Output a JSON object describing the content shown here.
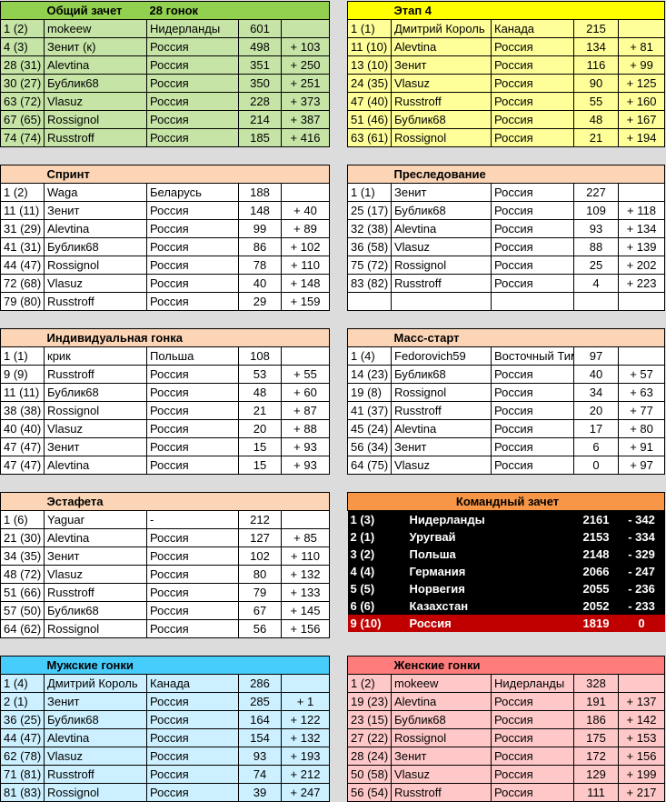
{
  "tables": [
    {
      "id": "overall",
      "title": "Общий зачет",
      "subtitle": "28 гонок",
      "side": "left",
      "header_color": "#92d050",
      "row_color": "#c6e4a6",
      "rows": [
        [
          "1 (2)",
          "mokeew",
          "Нидерланды",
          "601",
          ""
        ],
        [
          "4 (3)",
          "Зенит (к)",
          "Россия",
          "498",
          "+ 103"
        ],
        [
          "28 (31)",
          "Alevtina",
          "Россия",
          "351",
          "+ 250"
        ],
        [
          "30 (27)",
          "Бублик68",
          "Россия",
          "350",
          "+ 251"
        ],
        [
          "63 (72)",
          "Vlasuz",
          "Россия",
          "228",
          "+ 373"
        ],
        [
          "67 (65)",
          "Rossignol",
          "Россия",
          "214",
          "+ 387"
        ],
        [
          "74 (74)",
          "Russtroff",
          "Россия",
          "185",
          "+ 416"
        ]
      ]
    },
    {
      "id": "stage4",
      "title": "Этап 4",
      "subtitle": "",
      "side": "right",
      "header_color": "#ffff00",
      "row_color": "#ffff99",
      "rows": [
        [
          "1 (1)",
          "Дмитрий Король",
          "Канада",
          "215",
          ""
        ],
        [
          "11 (10)",
          "Alevtina",
          "Россия",
          "134",
          "+ 81"
        ],
        [
          "13 (10)",
          "Зенит",
          "Россия",
          "116",
          "+ 99"
        ],
        [
          "24 (35)",
          "Vlasuz",
          "Россия",
          "90",
          "+ 125"
        ],
        [
          "47 (40)",
          "Russtroff",
          "Россия",
          "55",
          "+ 160"
        ],
        [
          "51 (46)",
          "Бублик68",
          "Россия",
          "48",
          "+ 167"
        ],
        [
          "63 (61)",
          "Rossignol",
          "Россия",
          "21",
          "+ 194"
        ]
      ]
    },
    {
      "id": "sprint",
      "title": "Спринт",
      "subtitle": "",
      "side": "left",
      "header_color": "#fbd5b5",
      "row_color": "#ffffff",
      "rows": [
        [
          "1 (2)",
          "Waga",
          "Беларусь",
          "188",
          ""
        ],
        [
          "11 (11)",
          "Зенит",
          "Россия",
          "148",
          "+ 40"
        ],
        [
          "31 (29)",
          "Alevtina",
          "Россия",
          "99",
          "+ 89"
        ],
        [
          "41 (31)",
          "Бублик68",
          "Россия",
          "86",
          "+ 102"
        ],
        [
          "44 (47)",
          "Rossignol",
          "Россия",
          "78",
          "+ 110"
        ],
        [
          "72 (68)",
          "Vlasuz",
          "Россия",
          "40",
          "+ 148"
        ],
        [
          "79 (80)",
          "Russtroff",
          "Россия",
          "29",
          "+ 159"
        ]
      ]
    },
    {
      "id": "pursuit",
      "title": "Преследование",
      "subtitle": "",
      "side": "right",
      "header_color": "#fbd5b5",
      "row_color": "#ffffff",
      "rows": [
        [
          "1 (1)",
          "Зенит",
          "Россия",
          "227",
          ""
        ],
        [
          "25 (17)",
          "Бублик68",
          "Россия",
          "109",
          "+ 118"
        ],
        [
          "32 (38)",
          "Alevtina",
          "Россия",
          "93",
          "+ 134"
        ],
        [
          "36 (58)",
          "Vlasuz",
          "Россия",
          "88",
          "+ 139"
        ],
        [
          "75 (72)",
          "Rossignol",
          "Россия",
          "25",
          "+ 202"
        ],
        [
          "83 (82)",
          "Russtroff",
          "Россия",
          "4",
          "+ 223"
        ],
        [
          "",
          "",
          "",
          "",
          ""
        ]
      ]
    },
    {
      "id": "individual",
      "title": "Индивидуальная гонка",
      "subtitle": "",
      "side": "left",
      "header_color": "#fbd5b5",
      "row_color": "#ffffff",
      "rows": [
        [
          "1 (1)",
          "крик",
          "Польша",
          "108",
          ""
        ],
        [
          "9 (9)",
          "Russtroff",
          "Россия",
          "53",
          "+ 55"
        ],
        [
          "11 (11)",
          "Бублик68",
          "Россия",
          "48",
          "+ 60"
        ],
        [
          "38 (38)",
          "Rossignol",
          "Россия",
          "21",
          "+ 87"
        ],
        [
          "40 (40)",
          "Vlasuz",
          "Россия",
          "20",
          "+ 88"
        ],
        [
          "47 (47)",
          "Зенит",
          "Россия",
          "15",
          "+ 93"
        ],
        [
          "47 (47)",
          "Alevtina",
          "Россия",
          "15",
          "+ 93"
        ]
      ]
    },
    {
      "id": "massstart",
      "title": "Масс-старт",
      "subtitle": "",
      "side": "right",
      "header_color": "#fbd5b5",
      "row_color": "#ffffff",
      "rows": [
        [
          "1 (4)",
          "Fedorovich59",
          "Восточный Тимор",
          "97",
          ""
        ],
        [
          "14 (23)",
          "Бублик68",
          "Россия",
          "40",
          "+ 57"
        ],
        [
          "19 (8)",
          "Rossignol",
          "Россия",
          "34",
          "+ 63"
        ],
        [
          "41 (37)",
          "Russtroff",
          "Россия",
          "20",
          "+ 77"
        ],
        [
          "45 (24)",
          "Alevtina",
          "Россия",
          "17",
          "+ 80"
        ],
        [
          "56 (34)",
          "Зенит",
          "Россия",
          "6",
          "+ 91"
        ],
        [
          "64 (75)",
          "Vlasuz",
          "Россия",
          "0",
          "+ 97"
        ]
      ]
    },
    {
      "id": "relay",
      "title": "Эстафета",
      "subtitle": "",
      "side": "left",
      "header_color": "#fbd5b5",
      "row_color": "#ffffff",
      "rows": [
        [
          "1 (6)",
          "Yaguar",
          "-",
          "212",
          ""
        ],
        [
          "21 (30)",
          "Alevtina",
          "Россия",
          "127",
          "+ 85"
        ],
        [
          "34 (35)",
          "Зенит",
          "Россия",
          "102",
          "+ 110"
        ],
        [
          "48 (72)",
          "Vlasuz",
          "Россия",
          "80",
          "+ 132"
        ],
        [
          "51 (66)",
          "Russtroff",
          "Россия",
          "79",
          "+ 133"
        ],
        [
          "57 (50)",
          "Бублик68",
          "Россия",
          "67",
          "+ 145"
        ],
        [
          "64 (62)",
          "Rossignol",
          "Россия",
          "56",
          "+ 156"
        ]
      ]
    },
    {
      "id": "team",
      "title": "Командный зачет",
      "subtitle": "",
      "side": "right",
      "header_color": "#f79646",
      "row_color": "#000000",
      "highlight_color": "#c00000",
      "rows": [
        [
          "1 (3)",
          "Нидерланды",
          "",
          "2161",
          "- 342"
        ],
        [
          "2 (1)",
          "Уругвай",
          "",
          "2153",
          "- 334"
        ],
        [
          "3 (2)",
          "Польша",
          "",
          "2148",
          "- 329"
        ],
        [
          "4 (4)",
          "Германия",
          "",
          "2066",
          "- 247"
        ],
        [
          "5 (5)",
          "Норвегия",
          "",
          "2055",
          "- 236"
        ],
        [
          "6 (6)",
          "Казахстан",
          "",
          "2052",
          "- 233"
        ],
        [
          "9 (10)",
          "Россия",
          "",
          "1819",
          "0"
        ]
      ]
    },
    {
      "id": "men",
      "title": "Мужские гонки",
      "subtitle": "",
      "side": "left",
      "header_color": "#47cdfb",
      "row_color": "#ccf0ff",
      "rows": [
        [
          "1 (4)",
          "Дмитрий Король",
          "Канада",
          "286",
          ""
        ],
        [
          "2 (1)",
          "Зенит",
          "Россия",
          "285",
          "+ 1"
        ],
        [
          "36 (25)",
          "Бублик68",
          "Россия",
          "164",
          "+ 122"
        ],
        [
          "44 (47)",
          "Alevtina",
          "Россия",
          "154",
          "+ 132"
        ],
        [
          "62 (78)",
          "Vlasuz",
          "Россия",
          "93",
          "+ 193"
        ],
        [
          "71 (81)",
          "Russtroff",
          "Россия",
          "74",
          "+ 212"
        ],
        [
          "81 (83)",
          "Rossignol",
          "Россия",
          "39",
          "+ 247"
        ]
      ]
    },
    {
      "id": "women",
      "title": "Женские гонки",
      "subtitle": "",
      "side": "right",
      "header_color": "#ff7c7c",
      "row_color": "#ffc8c8",
      "rows": [
        [
          "1 (2)",
          "mokeew",
          "Нидерланды",
          "328",
          ""
        ],
        [
          "19 (23)",
          "Alevtina",
          "Россия",
          "191",
          "+ 137"
        ],
        [
          "23 (15)",
          "Бублик68",
          "Россия",
          "186",
          "+ 142"
        ],
        [
          "27 (22)",
          "Rossignol",
          "Россия",
          "175",
          "+ 153"
        ],
        [
          "28 (24)",
          "Зенит",
          "Россия",
          "172",
          "+ 156"
        ],
        [
          "50 (58)",
          "Vlasuz",
          "Россия",
          "129",
          "+ 199"
        ],
        [
          "56 (54)",
          "Russtroff",
          "Россия",
          "111",
          "+ 217"
        ]
      ]
    }
  ]
}
